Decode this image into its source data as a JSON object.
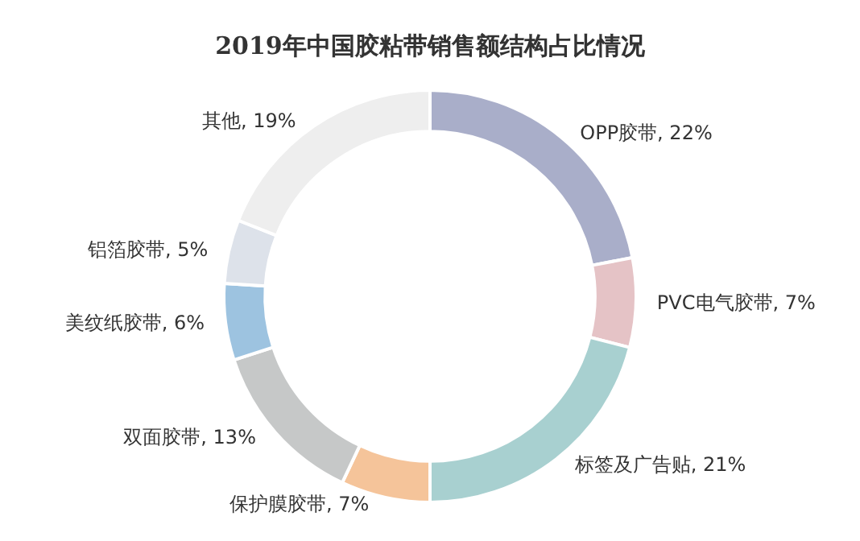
{
  "chart_data": {
    "type": "donut",
    "title": "2019年中国胶粘带销售额结构占比情况",
    "categories": [
      "OPP胶带",
      "PVC电气胶带",
      "标签及广告贴",
      "保护膜胶带",
      "双面胶带",
      "美纹纸胶带",
      "铝箔胶带",
      "其他"
    ],
    "values": [
      22,
      7,
      21,
      7,
      13,
      6,
      5,
      19
    ],
    "value_labels": [
      "22%",
      "7%",
      "21%",
      "7%",
      "13%",
      "6%",
      "5%",
      "19%"
    ],
    "colors": [
      "#a9aec9",
      "#e5c3c6",
      "#a8d0d0",
      "#f5c49a",
      "#c6c8c8",
      "#9dc3e0",
      "#dde2ea",
      "#eeeeee"
    ],
    "legend": false
  }
}
